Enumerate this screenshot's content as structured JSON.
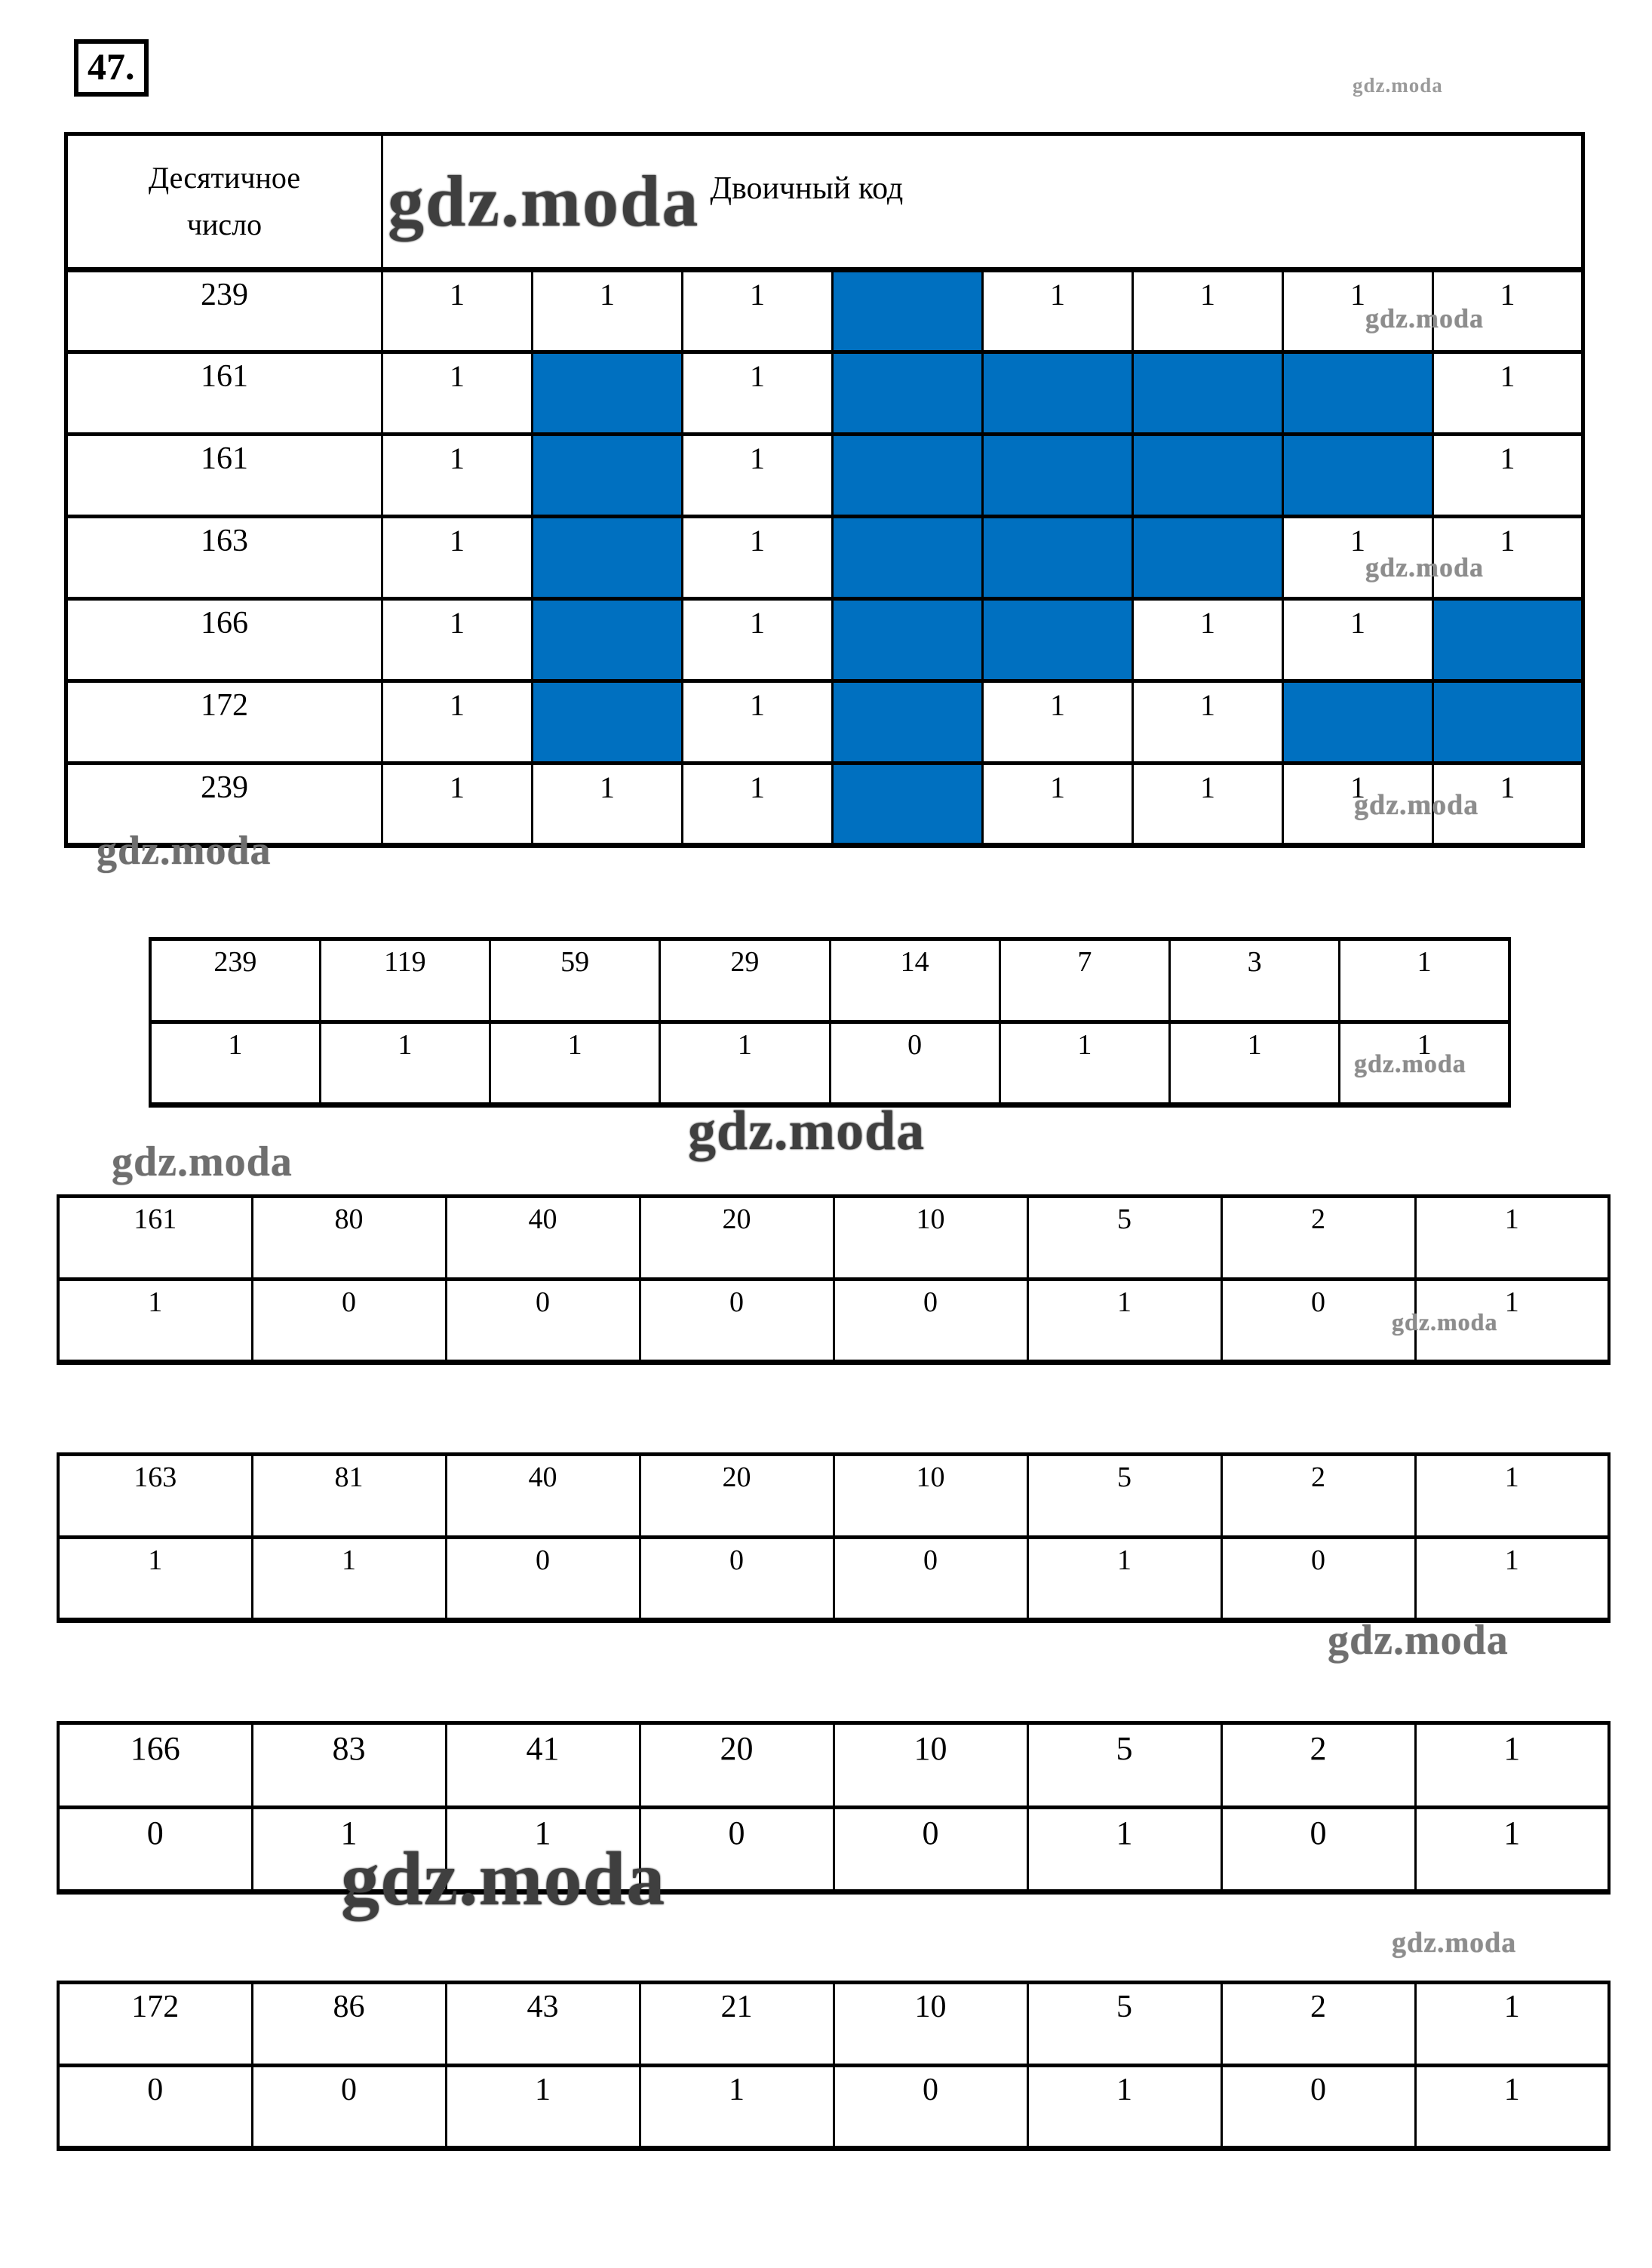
{
  "page": {
    "problem_number": "47."
  },
  "watermark": {
    "text": "gdz.moda"
  },
  "main_table": {
    "col1_header_lines": [
      "Десятичное",
      "число"
    ],
    "col2_header": "Двоичный код",
    "zero_bit_fill_color": "#0070c0",
    "rows": [
      {
        "decimal": "239",
        "bits": [
          "1",
          "1",
          "1",
          "0",
          "1",
          "1",
          "1",
          "1"
        ]
      },
      {
        "decimal": "161",
        "bits": [
          "1",
          "0",
          "1",
          "0",
          "0",
          "0",
          "0",
          "1"
        ]
      },
      {
        "decimal": "161",
        "bits": [
          "1",
          "0",
          "1",
          "0",
          "0",
          "0",
          "0",
          "1"
        ]
      },
      {
        "decimal": "163",
        "bits": [
          "1",
          "0",
          "1",
          "0",
          "0",
          "0",
          "1",
          "1"
        ]
      },
      {
        "decimal": "166",
        "bits": [
          "1",
          "0",
          "1",
          "0",
          "0",
          "1",
          "1",
          "0"
        ]
      },
      {
        "decimal": "172",
        "bits": [
          "1",
          "0",
          "1",
          "0",
          "1",
          "1",
          "0",
          "0"
        ]
      },
      {
        "decimal": "239",
        "bits": [
          "1",
          "1",
          "1",
          "0",
          "1",
          "1",
          "1",
          "1"
        ]
      }
    ]
  },
  "division_tables": [
    {
      "values": [
        "239",
        "119",
        "59",
        "29",
        "14",
        "7",
        "3",
        "1"
      ],
      "remainders": [
        "1",
        "1",
        "1",
        "1",
        "0",
        "1",
        "1",
        "1"
      ]
    },
    {
      "values": [
        "161",
        "80",
        "40",
        "20",
        "10",
        "5",
        "2",
        "1"
      ],
      "remainders": [
        "1",
        "0",
        "0",
        "0",
        "0",
        "1",
        "0",
        "1"
      ]
    },
    {
      "values": [
        "163",
        "81",
        "40",
        "20",
        "10",
        "5",
        "2",
        "1"
      ],
      "remainders": [
        "1",
        "1",
        "0",
        "0",
        "0",
        "1",
        "0",
        "1"
      ]
    },
    {
      "values": [
        "166",
        "83",
        "41",
        "20",
        "10",
        "5",
        "2",
        "1"
      ],
      "remainders": [
        "0",
        "1",
        "1",
        "0",
        "0",
        "1",
        "0",
        "1"
      ]
    },
    {
      "values": [
        "172",
        "86",
        "43",
        "21",
        "10",
        "5",
        "2",
        "1"
      ],
      "remainders": [
        "0",
        "0",
        "1",
        "1",
        "0",
        "1",
        "0",
        "1"
      ]
    }
  ]
}
